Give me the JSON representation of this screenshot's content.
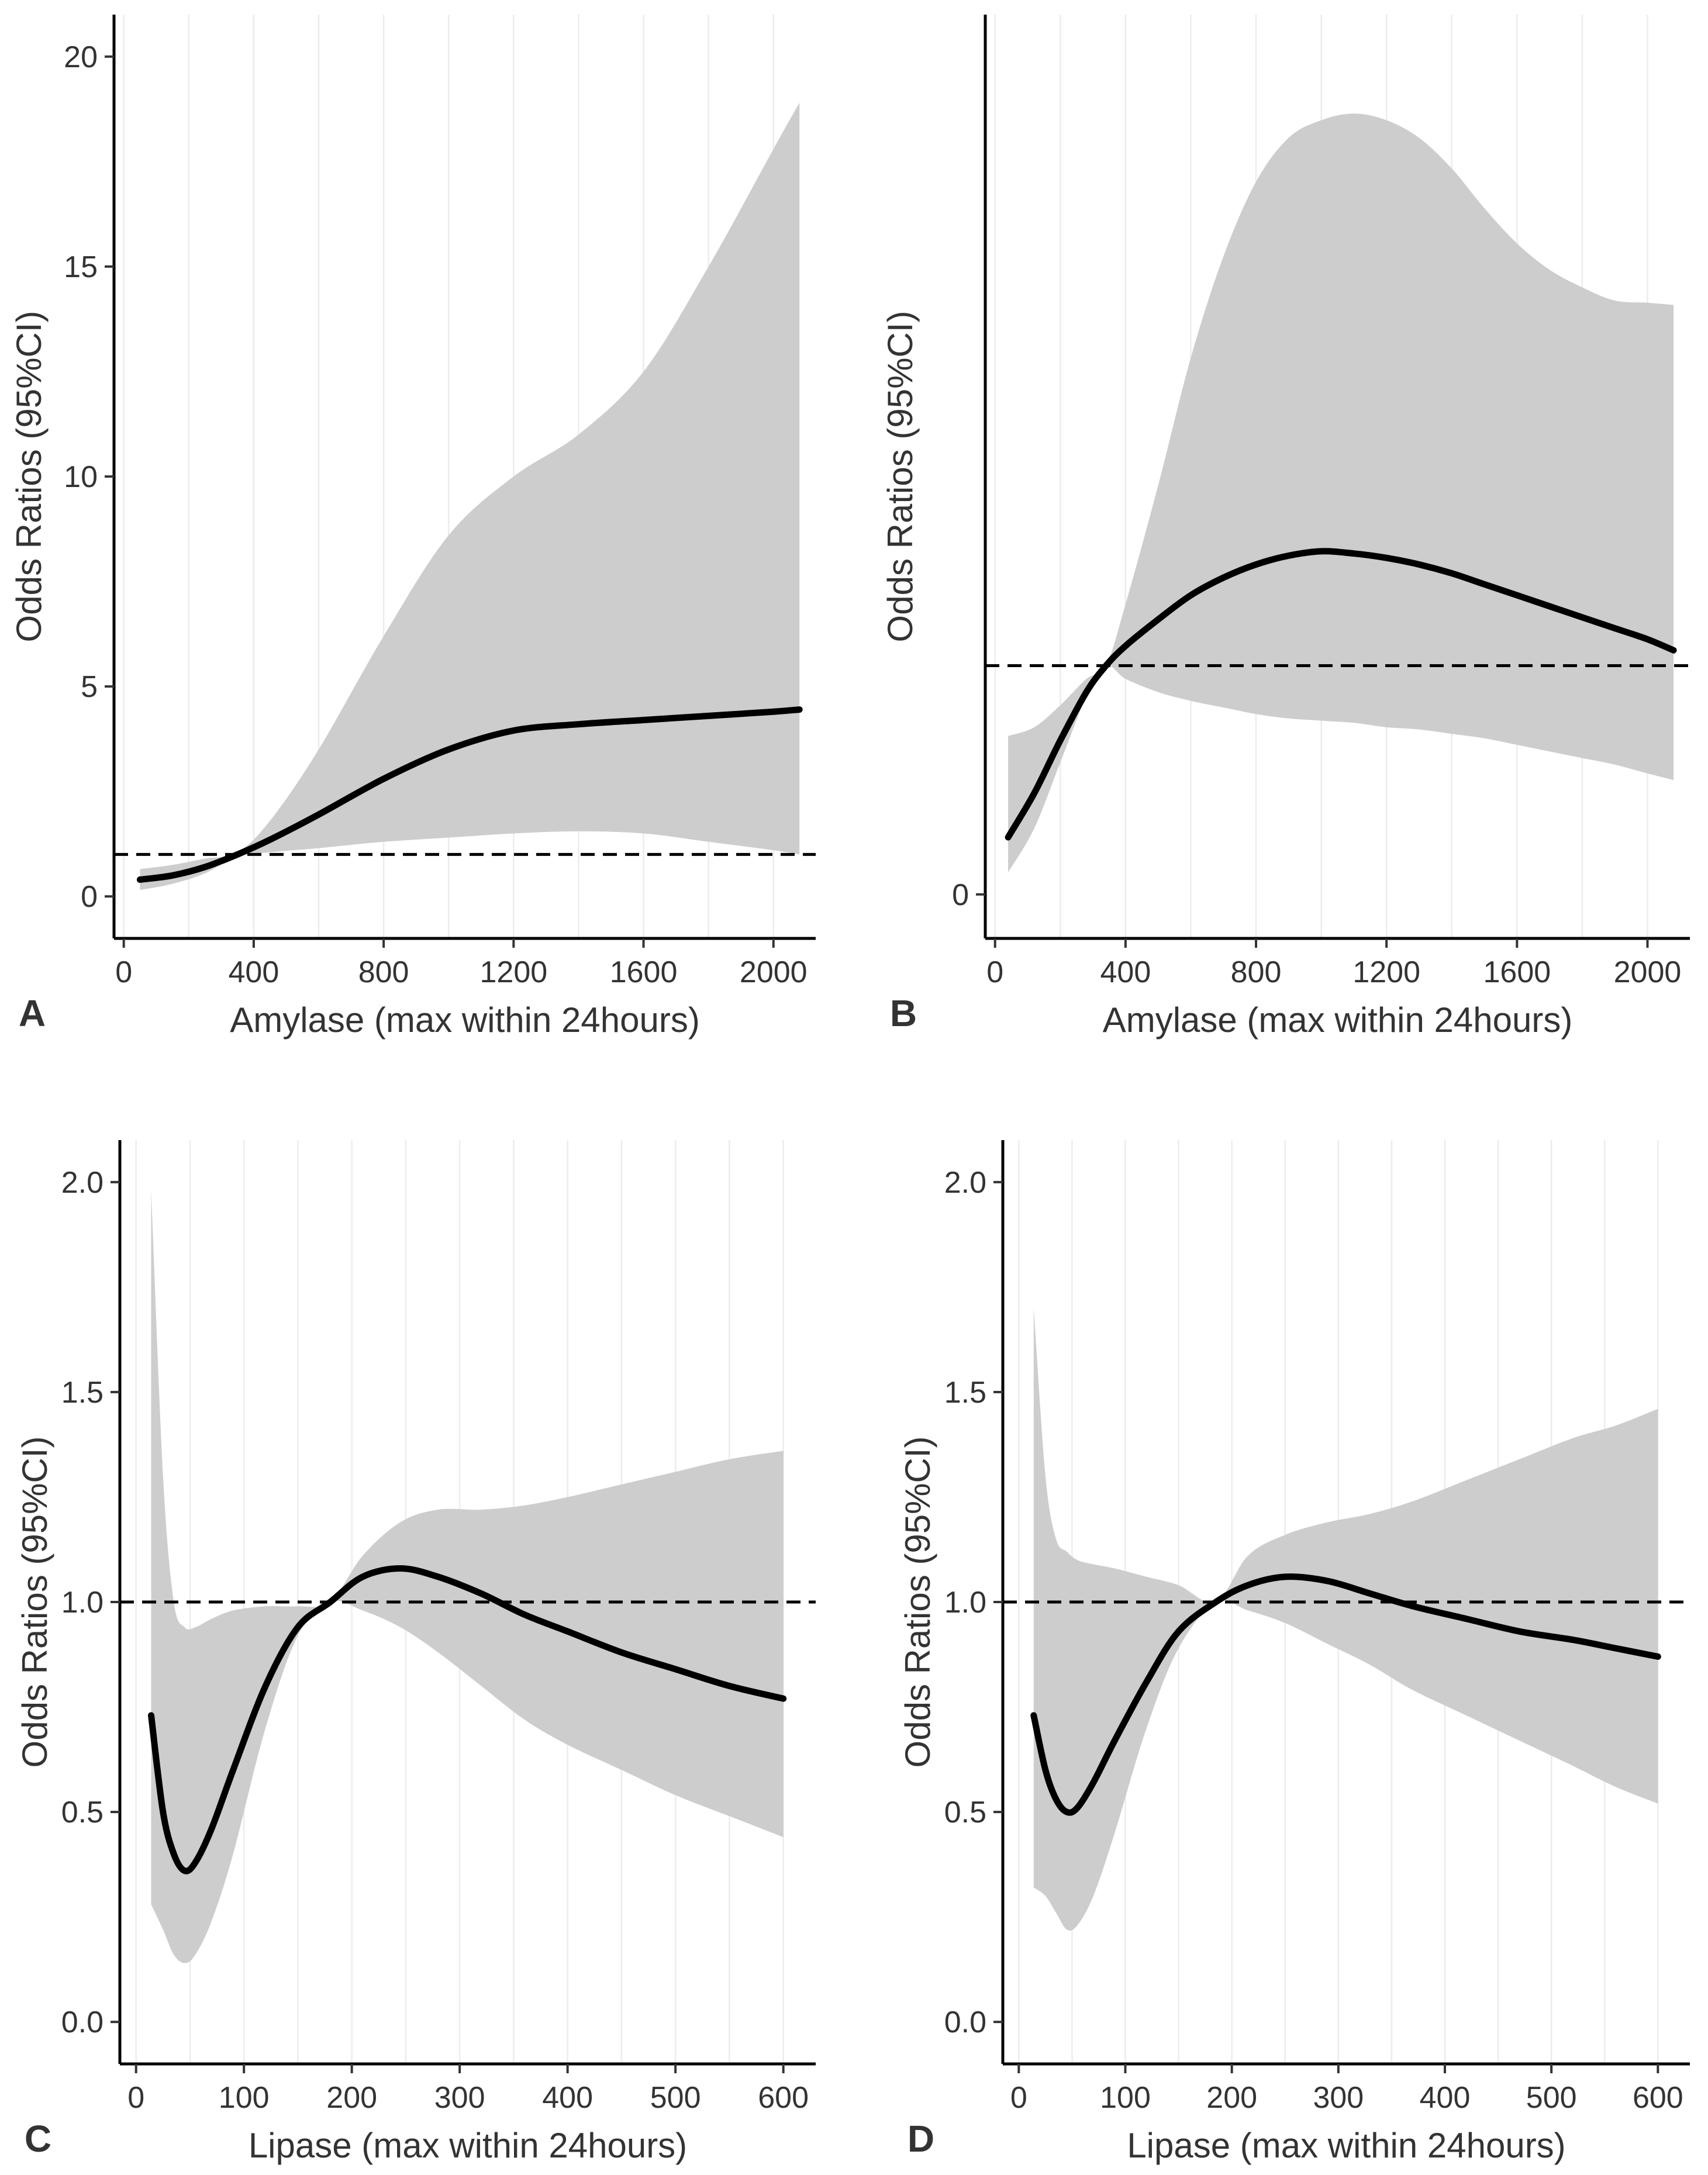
{
  "chart_data": [
    {
      "panel": "A",
      "type": "line",
      "xlabel": "Amylase (max within 24hours)",
      "ylabel": "Odds Ratios (95%CI)",
      "xlim": [
        -30,
        2130
      ],
      "ylim": [
        -1,
        21
      ],
      "xticks": [
        0,
        400,
        800,
        1200,
        1600,
        2000
      ],
      "xtick_labels": [
        "0",
        "400",
        "800",
        "1200",
        "1600",
        "2000"
      ],
      "yticks": [
        0,
        5,
        10,
        15,
        20
      ],
      "ytick_labels": [
        "0",
        "5",
        "10",
        "15",
        "20"
      ],
      "reference_line": 1.0,
      "x": [
        50,
        150,
        250,
        350,
        450,
        600,
        800,
        1000,
        1200,
        1400,
        1600,
        1800,
        2000,
        2080
      ],
      "or": [
        0.4,
        0.5,
        0.7,
        1.0,
        1.35,
        1.95,
        2.8,
        3.5,
        3.95,
        4.1,
        4.2,
        4.3,
        4.4,
        4.45
      ],
      "ci_lower": [
        0.15,
        0.3,
        0.55,
        0.95,
        1.05,
        1.15,
        1.3,
        1.4,
        1.5,
        1.55,
        1.5,
        1.3,
        1.1,
        1.0
      ],
      "ci_upper": [
        0.65,
        0.75,
        0.9,
        1.05,
        1.8,
        3.5,
        6.2,
        8.6,
        10.0,
        11.0,
        12.5,
        15.0,
        17.8,
        18.9
      ]
    },
    {
      "panel": "B",
      "type": "line",
      "xlabel": "Amylase (max within 24hours)",
      "ylabel": "Odds Ratios (95%CI)",
      "xlim": [
        -30,
        2130
      ],
      "ylim": [
        -1,
        20
      ],
      "xticks": [
        0,
        400,
        800,
        1200,
        1600,
        2000
      ],
      "xtick_labels": [
        "0",
        "400",
        "800",
        "1200",
        "1600",
        "2000"
      ],
      "yticks": [
        0
      ],
      "ytick_labels": [
        "0"
      ],
      "reference_line": 5.2,
      "x": [
        40,
        120,
        200,
        280,
        340,
        400,
        500,
        600,
        700,
        800,
        900,
        1000,
        1100,
        1200,
        1300,
        1400,
        1500,
        1600,
        1700,
        1800,
        1900,
        2000,
        2080
      ],
      "or": [
        1.3,
        2.3,
        3.5,
        4.6,
        5.2,
        5.65,
        6.25,
        6.8,
        7.2,
        7.5,
        7.7,
        7.8,
        7.75,
        7.65,
        7.5,
        7.3,
        7.05,
        6.8,
        6.55,
        6.3,
        6.05,
        5.8,
        5.55
      ],
      "ci_lower": [
        0.5,
        1.5,
        3.0,
        4.5,
        5.2,
        4.9,
        4.6,
        4.4,
        4.25,
        4.1,
        4.0,
        3.95,
        3.9,
        3.8,
        3.75,
        3.65,
        3.55,
        3.4,
        3.25,
        3.1,
        2.95,
        2.75,
        2.6
      ],
      "ci_upper": [
        3.6,
        3.8,
        4.3,
        4.9,
        5.2,
        6.6,
        9.3,
        12.2,
        14.5,
        16.2,
        17.2,
        17.6,
        17.75,
        17.6,
        17.2,
        16.5,
        15.6,
        14.8,
        14.2,
        13.8,
        13.5,
        13.45,
        13.4
      ]
    },
    {
      "panel": "C",
      "type": "line",
      "xlabel": "Lipase (max within 24hours)",
      "ylabel": "Odds Ratios (95%CI)",
      "xlim": [
        -15,
        630
      ],
      "ylim": [
        -0.1,
        2.1
      ],
      "xticks": [
        0,
        100,
        200,
        300,
        400,
        500,
        600
      ],
      "xtick_labels": [
        "0",
        "100",
        "200",
        "300",
        "400",
        "500",
        "600"
      ],
      "yticks": [
        0.0,
        0.5,
        1.0,
        1.5,
        2.0
      ],
      "ytick_labels": [
        "0.0",
        "0.5",
        "1.0",
        "1.5",
        "2.0"
      ],
      "reference_line": 1.0,
      "x": [
        14,
        25,
        35,
        45,
        55,
        70,
        90,
        120,
        150,
        180,
        210,
        245,
        280,
        320,
        360,
        400,
        450,
        500,
        550,
        600
      ],
      "or": [
        0.73,
        0.5,
        0.4,
        0.36,
        0.38,
        0.46,
        0.6,
        0.8,
        0.94,
        1.0,
        1.06,
        1.08,
        1.06,
        1.02,
        0.97,
        0.93,
        0.88,
        0.84,
        0.8,
        0.77
      ],
      "ci_lower": [
        0.28,
        0.22,
        0.16,
        0.14,
        0.16,
        0.24,
        0.4,
        0.7,
        0.92,
        1.0,
        0.98,
        0.94,
        0.88,
        0.8,
        0.72,
        0.66,
        0.6,
        0.54,
        0.49,
        0.44
      ],
      "ci_upper": [
        1.98,
        1.3,
        1.0,
        0.94,
        0.94,
        0.96,
        0.98,
        0.99,
        0.99,
        1.0,
        1.11,
        1.19,
        1.22,
        1.22,
        1.23,
        1.25,
        1.28,
        1.31,
        1.34,
        1.36
      ]
    },
    {
      "panel": "D",
      "type": "line",
      "xlabel": "Lipase (max within 24hours)",
      "ylabel": "Odds Ratios (95%CI)",
      "xlim": [
        -15,
        630
      ],
      "ylim": [
        -0.1,
        2.1
      ],
      "xticks": [
        0,
        100,
        200,
        300,
        400,
        500,
        600
      ],
      "xtick_labels": [
        "0",
        "100",
        "200",
        "300",
        "400",
        "500",
        "600"
      ],
      "yticks": [
        0.0,
        0.5,
        1.0,
        1.5,
        2.0
      ],
      "ytick_labels": [
        "0.0",
        "0.5",
        "1.0",
        "1.5",
        "2.0"
      ],
      "reference_line": 1.0,
      "x": [
        14,
        25,
        35,
        45,
        55,
        70,
        90,
        120,
        150,
        185,
        215,
        250,
        290,
        330,
        370,
        420,
        470,
        520,
        560,
        600
      ],
      "or": [
        0.73,
        0.6,
        0.53,
        0.5,
        0.51,
        0.57,
        0.67,
        0.81,
        0.93,
        1.0,
        1.04,
        1.06,
        1.05,
        1.02,
        0.99,
        0.96,
        0.93,
        0.91,
        0.89,
        0.87
      ],
      "ci_lower": [
        0.32,
        0.3,
        0.26,
        0.22,
        0.23,
        0.3,
        0.45,
        0.7,
        0.89,
        1.0,
        0.98,
        0.95,
        0.9,
        0.85,
        0.79,
        0.73,
        0.67,
        0.61,
        0.56,
        0.52
      ],
      "ci_upper": [
        1.7,
        1.3,
        1.15,
        1.12,
        1.1,
        1.09,
        1.08,
        1.06,
        1.04,
        1.0,
        1.11,
        1.16,
        1.19,
        1.21,
        1.24,
        1.29,
        1.34,
        1.39,
        1.42,
        1.46
      ]
    }
  ]
}
